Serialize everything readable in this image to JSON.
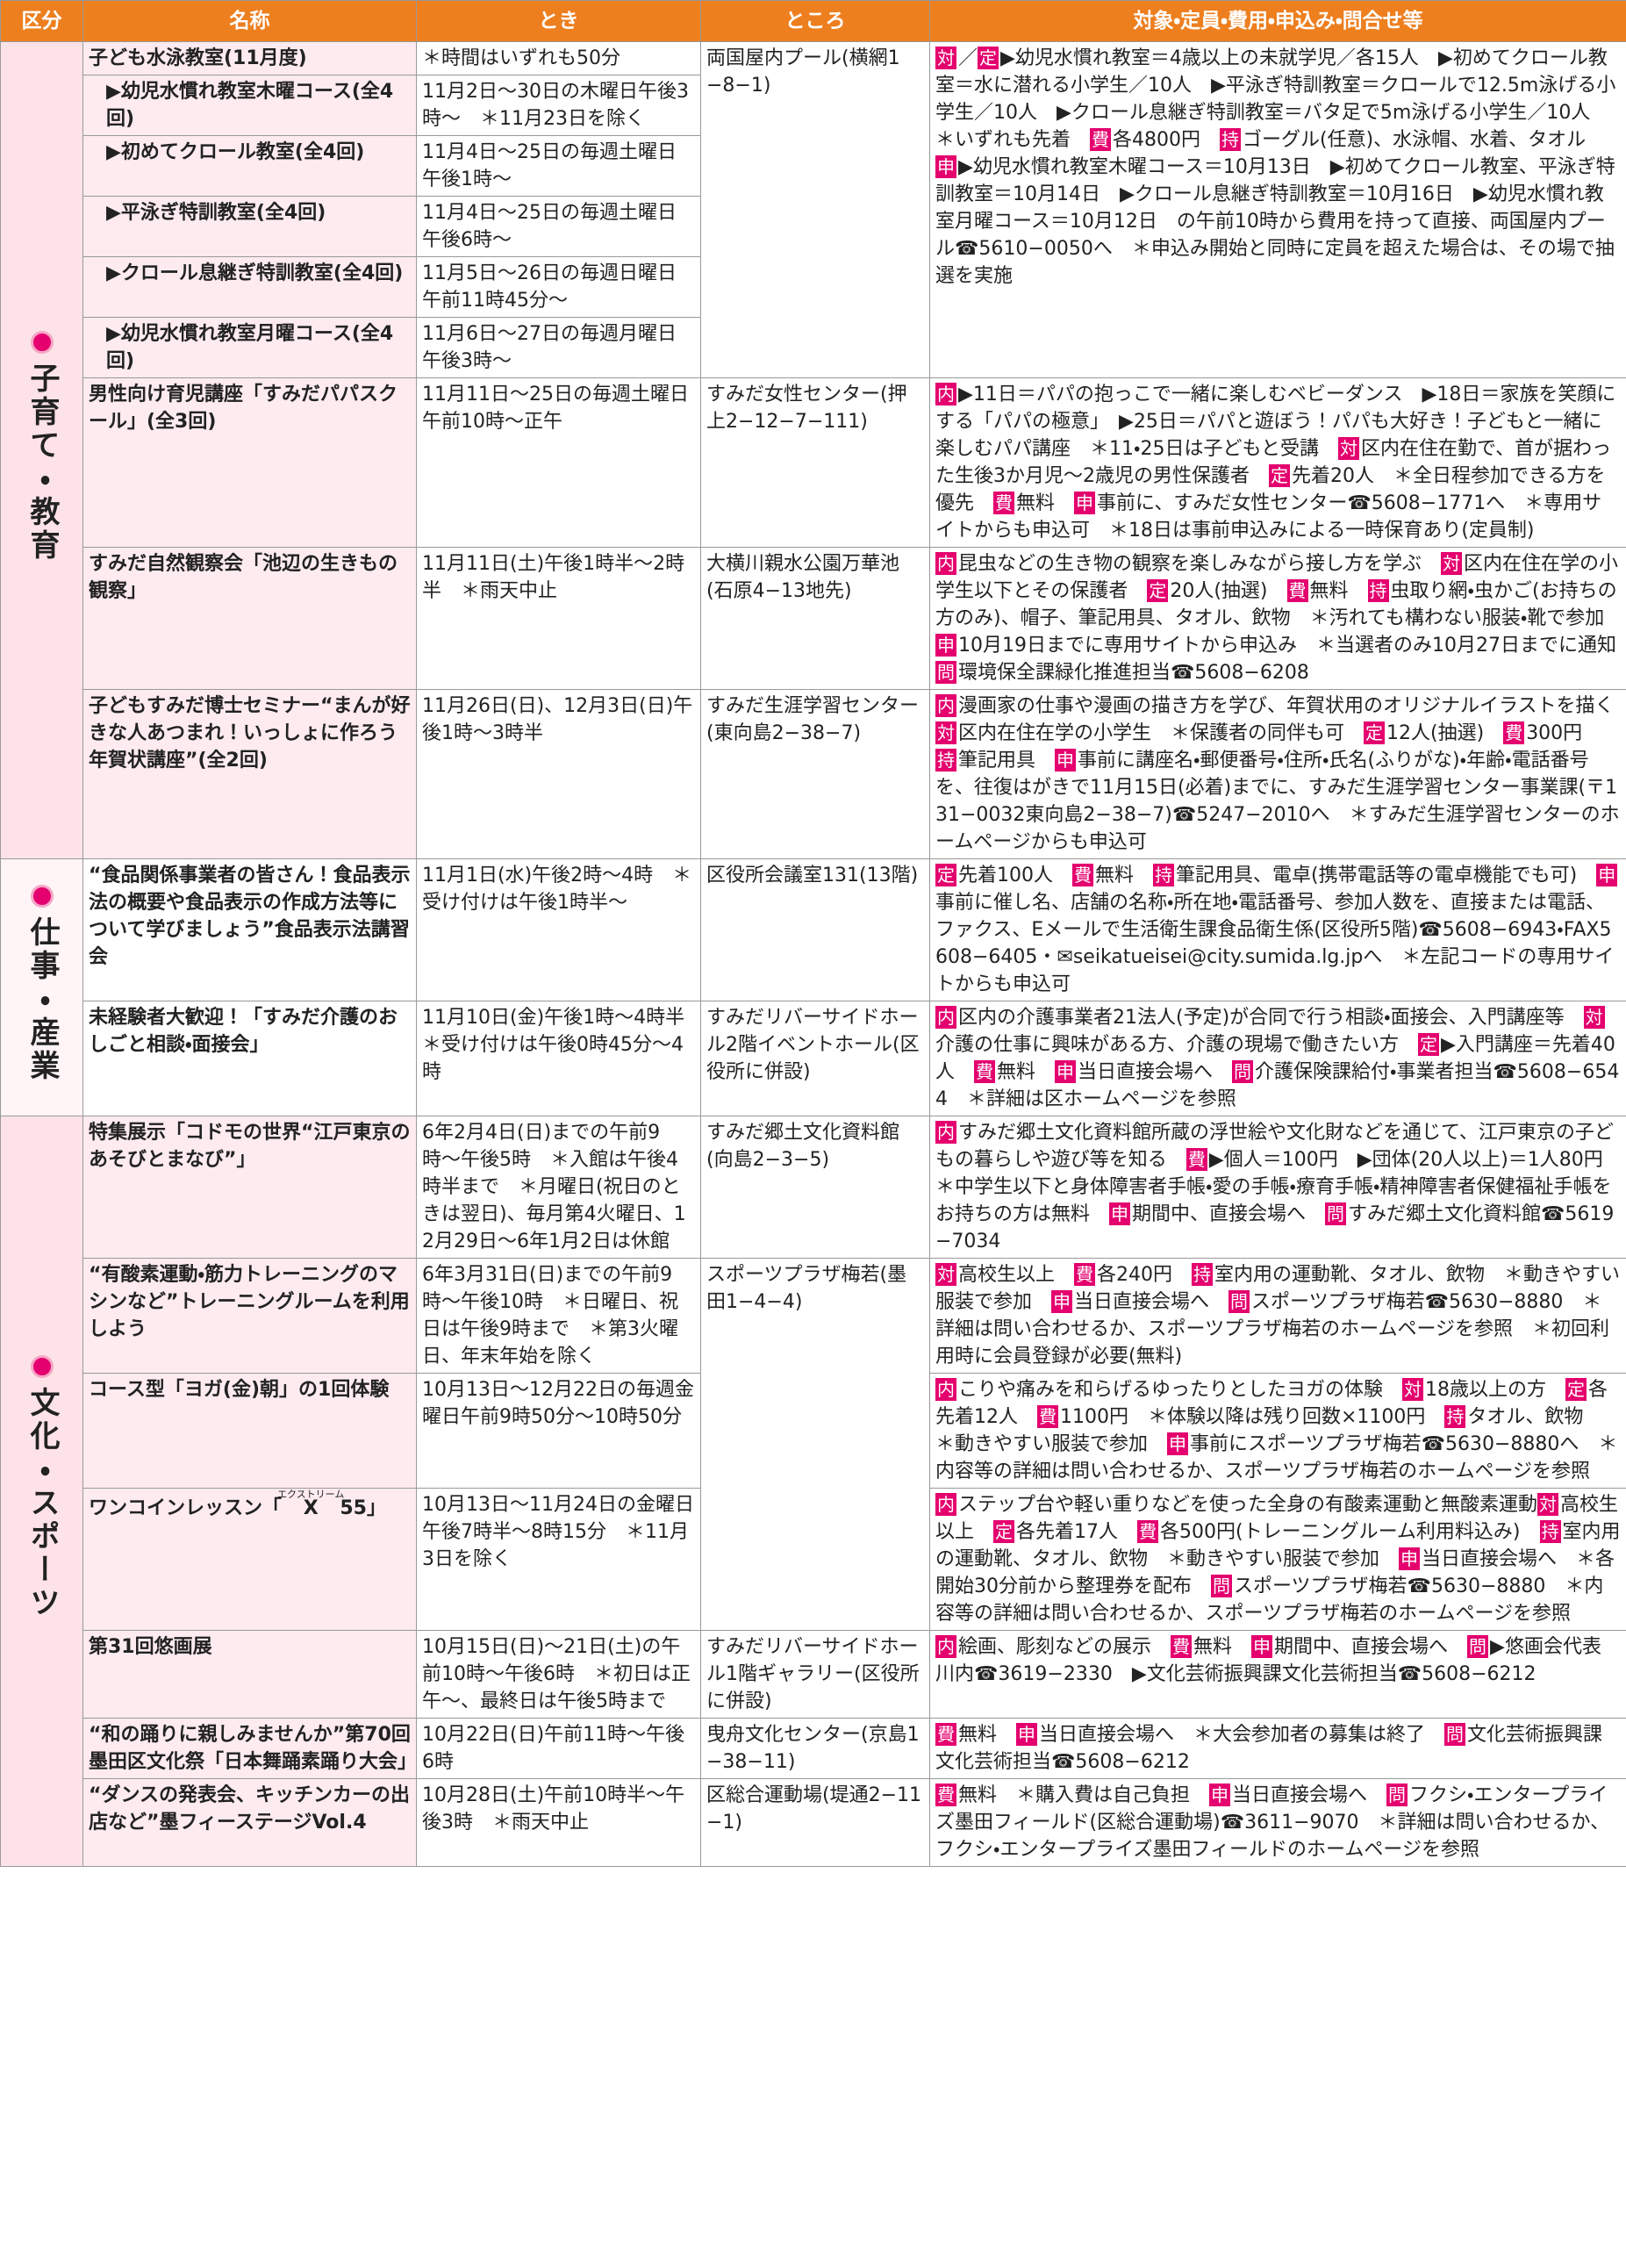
{
  "table": {
    "headers": [
      "区分",
      "名称",
      "とき",
      "ところ",
      "対象・定員・費用・申込み・問合せ等"
    ],
    "sections": [
      {
        "label": "子育て・教育",
        "rows": [
          {
            "name": "子ども水泳教室(11月度)",
            "when": "＊時間はいずれも50分",
            "where": "両国屋内プール(横網1−8−1)",
            "subrows": [
              {
                "name": "▶幼児水慣れ教室木曜コース(全4回)",
                "when": "11月2日〜30日の木曜日午後3時〜　＊11月23日を除く"
              },
              {
                "name": "▶初めてクロール教室(全4回)",
                "when": "11月4日〜25日の毎週土曜日午後1時〜"
              },
              {
                "name": "▶平泳ぎ特訓教室(全4回)",
                "when": "11月4日〜25日の毎週土曜日午後6時〜"
              },
              {
                "name": "▶クロール息継ぎ特訓教室(全4回)",
                "when": "11月5日〜26日の毎週日曜日午前11時45分〜"
              },
              {
                "name": "▶幼児水慣れ教室月曜コース(全4回)",
                "when": "11月6日〜27日の毎週月曜日午後3時〜"
              }
            ],
            "details": [
              {
                "tag": "対",
                "text": "／"
              },
              {
                "tag": "定",
                "text": "▶幼児水慣れ教室＝4歳以上の未就学児／各15人　▶初めてクロール教室＝水に潜れる小学生／10人　▶平泳ぎ特訓教室＝クロールで12.5m泳げる小学生／10人　▶クロール息継ぎ特訓教室＝バタ足で5m泳げる小学生／10人　＊いずれも先着　"
              },
              {
                "tag": "費",
                "text": "各4800円　"
              },
              {
                "tag": "持",
                "text": "ゴーグル(任意)、水泳帽、水着、タオル　"
              },
              {
                "tag": "申",
                "text": "▶幼児水慣れ教室木曜コース＝10月13日　▶初めてクロール教室、平泳ぎ特訓教室＝10月14日　▶クロール息継ぎ特訓教室＝10月16日　▶幼児水慣れ教室月曜コース＝10月12日　の午前10時から費用を持って直接、両国屋内プール☎5610−0050へ　＊申込み開始と同時に定員を超えた場合は、その場で抽選を実施"
              }
            ]
          },
          {
            "name": "男性向け育児講座「すみだパパスクール」(全3回)",
            "when": "11月11日〜25日の毎週土曜日午前10時〜正午",
            "where": "すみだ女性センター(押上2−12−7−111)",
            "details": [
              {
                "tag": "内",
                "text": "▶11日＝パパの抱っこで一緒に楽しむベビーダンス　▶18日＝家族を笑顔にする「パパの極意」　▶25日＝パパと遊ぼう！パパも大好き！子どもと一緒に楽しむパパ講座　＊11・25日は子どもと受講　"
              },
              {
                "tag": "対",
                "text": "区内在住在勤で、首が据わった生後3か月児〜2歳児の男性保護者　"
              },
              {
                "tag": "定",
                "text": "先着20人　＊全日程参加できる方を優先　"
              },
              {
                "tag": "費",
                "text": "無料　"
              },
              {
                "tag": "申",
                "text": "事前に、すみだ女性センター☎5608−1771へ　＊専用サイトからも申込可　＊18日は事前申込みによる一時保育あり(定員制)"
              }
            ]
          },
          {
            "name": "すみだ自然観察会「池辺の生きもの観察」",
            "when": "11月11日(土)午後1時半〜2時半　＊雨天中止",
            "where": "大横川親水公園万華池(石原4−13地先)",
            "details": [
              {
                "tag": "内",
                "text": "昆虫などの生き物の観察を楽しみながら接し方を学ぶ　"
              },
              {
                "tag": "対",
                "text": "区内在住在学の小学生以下とその保護者　"
              },
              {
                "tag": "定",
                "text": "20人(抽選)　"
              },
              {
                "tag": "費",
                "text": "無料　"
              },
              {
                "tag": "持",
                "text": "虫取り網・虫かご(お持ちの方のみ)、帽子、筆記用具、タオル、飲物　＊汚れても構わない服装・靴で参加　"
              },
              {
                "tag": "申",
                "text": "10月19日までに専用サイトから申込み　＊当選者のみ10月27日までに通知　"
              },
              {
                "tag": "問",
                "text": "環境保全課緑化推進担当☎5608−6208"
              }
            ]
          },
          {
            "name": "子どもすみだ博士セミナー“まんが好きな人あつまれ！いっしょに作ろう年賀状講座”(全2回)",
            "when": "11月26日(日)、12月3日(日)午後1時〜3時半",
            "where": "すみだ生涯学習センター(東向島2−38−7)",
            "details": [
              {
                "tag": "内",
                "text": "漫画家の仕事や漫画の描き方を学び、年賀状用のオリジナルイラストを描く　"
              },
              {
                "tag": "対",
                "text": "区内在住在学の小学生　＊保護者の同伴も可　"
              },
              {
                "tag": "定",
                "text": "12人(抽選)　"
              },
              {
                "tag": "費",
                "text": "300円　"
              },
              {
                "tag": "持",
                "text": "筆記用具　"
              },
              {
                "tag": "申",
                "text": "事前に講座名・郵便番号・住所・氏名(ふりがな)・年齢・電話番号を、往復はがきで11月15日(必着)までに、すみだ生涯学習センター事業課(〒131−0032東向島2−38−7)☎5247−2010へ　＊すみだ生涯学習センターのホームページからも申込可"
              }
            ]
          }
        ]
      },
      {
        "label": "仕事・産業",
        "rows": [
          {
            "name": "“食品関係事業者の皆さん！食品表示法の概要や食品表示の作成方法等について学びましょう”食品表示法講習会",
            "when": "11月1日(水)午後2時〜4時　＊受け付けは午後1時半〜",
            "where": "区役所会議室131(13階)",
            "details": [
              {
                "tag": "定",
                "text": "先着100人　"
              },
              {
                "tag": "費",
                "text": "無料　"
              },
              {
                "tag": "持",
                "text": "筆記用具、電卓(携帯電話等の電卓機能でも可)　"
              },
              {
                "tag": "申",
                "text": "事前に催し名、店舗の名称・所在地・電話番号、参加人数を、直接または電話、ファクス、Eメールで生活衛生課食品衛生係(区役所5階)☎5608−6943・FAX5608−6405・✉seikatueisei@city.sumida.lg.jpへ　＊左記コードの専用サイトからも申込可"
              }
            ]
          },
          {
            "name": "未経験者大歓迎！「すみだ介護のおしごと相談・面接会」",
            "when": "11月10日(金)午後1時〜4時半　＊受け付けは午後0時45分〜4時",
            "where": "すみだリバーサイドホール2階イベントホール(区役所に併設)",
            "details": [
              {
                "tag": "内",
                "text": "区内の介護事業者21法人(予定)が合同で行う相談・面接会、入門講座等　"
              },
              {
                "tag": "対",
                "text": "介護の仕事に興味がある方、介護の現場で働きたい方　"
              },
              {
                "tag": "定",
                "text": "▶入門講座＝先着40人　"
              },
              {
                "tag": "費",
                "text": "無料　"
              },
              {
                "tag": "申",
                "text": "当日直接会場へ　"
              },
              {
                "tag": "問",
                "text": "介護保険課給付・事業者担当☎5608−6544　＊詳細は区ホームページを参照"
              }
            ]
          }
        ]
      },
      {
        "label": "文化・スポーツ",
        "rows": [
          {
            "name": "特集展示「コドモの世界“江戸東京のあそびとまなび”」",
            "when": "6年2月4日(日)までの午前9時〜午後5時　＊入館は午後4時半まで　＊月曜日(祝日のときは翌日)、毎月第4火曜日、12月29日〜6年1月2日は休館",
            "where": "すみだ郷土文化資料館(向島2−3−5)",
            "details": [
              {
                "tag": "内",
                "text": "すみだ郷土文化資料館所蔵の浮世絵や文化財などを通じて、江戸東京の子どもの暮らしや遊び等を知る　"
              },
              {
                "tag": "費",
                "text": "▶個人＝100円　▶団体(20人以上)＝1人80円　＊中学生以下と身体障害者手帳・愛の手帳・療育手帳・精神障害者保健福祉手帳をお持ちの方は無料　"
              },
              {
                "tag": "申",
                "text": "期間中、直接会場へ　"
              },
              {
                "tag": "問",
                "text": "すみだ郷土文化資料館☎5619−7034"
              }
            ]
          },
          {
            "name": "“有酸素運動・筋力トレーニングのマシンなど”トレーニングルームを利用しよう",
            "when": "6年3月31日(日)までの午前9時〜午後10時　＊日曜日、祝日は午後9時まで　＊第3火曜日、年末年始を除く",
            "where": "スポーツプラザ梅若(墨田1−4−4)",
            "details": [
              {
                "tag": "対",
                "text": "高校生以上　"
              },
              {
                "tag": "費",
                "text": "各240円　"
              },
              {
                "tag": "持",
                "text": "室内用の運動靴、タオル、飲物　＊動きやすい服装で参加　"
              },
              {
                "tag": "申",
                "text": "当日直接会場へ　"
              },
              {
                "tag": "問",
                "text": "スポーツプラザ梅若☎5630−8880　＊詳細は問い合わせるか、スポーツプラザ梅若のホームページを参照　＊初回利用時に会員登録が必要(無料)"
              }
            ]
          },
          {
            "name": "コース型「ヨガ(金)朝」の1回体験",
            "when": "10月13日〜12月22日の毎週金曜日午前9時50分〜10時50分",
            "details": [
              {
                "tag": "内",
                "text": "こりや痛みを和らげるゆったりとしたヨガの体験　"
              },
              {
                "tag": "対",
                "text": "18歳以上の方　"
              },
              {
                "tag": "定",
                "text": "各先着12人　"
              },
              {
                "tag": "費",
                "text": "1100円　＊体験以降は残り回数×1100円　"
              },
              {
                "tag": "持",
                "text": "タオル、飲物　＊動きやすい服装で参加　"
              },
              {
                "tag": "申",
                "text": "事前にスポーツプラザ梅若☎5630−8880へ　＊内容等の詳細は問い合わせるか、スポーツプラザ梅若のホームページを参照"
              }
            ]
          },
          {
            "name": "ワンコインレッスン「",
            "name_ruby": {
              "base": "X",
              "rt": "エクストリーム"
            },
            "name_after": "55」",
            "when": "10月13日〜11月24日の金曜日午後7時半〜8時15分　＊11月3日を除く",
            "details": [
              {
                "tag": "内",
                "text": "ステップ台や軽い重りなどを使った全身の有酸素運動と無酸素運動"
              },
              {
                "tag": "対",
                "text": "高校生以上　"
              },
              {
                "tag": "定",
                "text": "各先着17人　"
              },
              {
                "tag": "費",
                "text": "各500円(トレーニングルーム利用料込み)　"
              },
              {
                "tag": "持",
                "text": "室内用の運動靴、タオル、飲物　＊動きやすい服装で参加　"
              },
              {
                "tag": "申",
                "text": "当日直接会場へ　＊各開始30分前から整理券を配布　"
              },
              {
                "tag": "問",
                "text": "スポーツプラザ梅若☎5630−8880　＊内容等の詳細は問い合わせるか、スポーツプラザ梅若のホームページを参照"
              }
            ]
          },
          {
            "name": "第31回悠画展",
            "when": "10月15日(日)〜21日(土)の午前10時〜午後6時　＊初日は正午〜、最終日は午後5時まで",
            "where": "すみだリバーサイドホール1階ギャラリー(区役所に併設)",
            "details": [
              {
                "tag": "内",
                "text": "絵画、彫刻などの展示　"
              },
              {
                "tag": "費",
                "text": "無料　"
              },
              {
                "tag": "申",
                "text": "期間中、直接会場へ　"
              },
              {
                "tag": "問",
                "text": "▶悠画会代表　川内☎3619−2330　▶文化芸術振興課文化芸術担当☎5608−6212"
              }
            ]
          },
          {
            "name": "“和の踊りに親しみませんか”第70回墨田区文化祭「日本舞踊素踊り大会」",
            "when": "10月22日(日)午前11時〜午後6時",
            "where": "曳舟文化センター(京島1−38−11)",
            "details": [
              {
                "tag": "費",
                "text": "無料　"
              },
              {
                "tag": "申",
                "text": "当日直接会場へ　＊大会参加者の募集は終了　"
              },
              {
                "tag": "問",
                "text": "文化芸術振興課文化芸術担当☎5608−6212"
              }
            ]
          },
          {
            "name": "“ダンスの発表会、キッチンカーの出店など”墨フィーステージVol.4",
            "when": "10月28日(土)午前10時半〜午後3時　＊雨天中止",
            "where": "区総合運動場(堤通2−11−1)",
            "details": [
              {
                "tag": "費",
                "text": "無料　＊購入費は自己負担　"
              },
              {
                "tag": "申",
                "text": "当日直接会場へ　"
              },
              {
                "tag": "問",
                "text": "フクシ・エンタープライズ墨田フィールド(区総合運動場)☎3611−9070　＊詳細は問い合わせるか、フクシ・エンタープライズ墨田フィールドのホームページを参照"
              }
            ]
          }
        ]
      }
    ]
  }
}
